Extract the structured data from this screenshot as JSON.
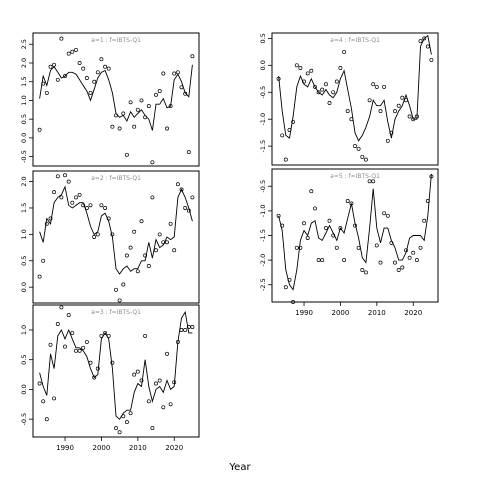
{
  "chart_data": {
    "type": "scatter",
    "xlabel": "Year",
    "panels": [
      {
        "title": "a=1 : f=IBTS-Q1",
        "ylim": [
          -0.75,
          2.8
        ],
        "yticks": [
          -0.5,
          0.0,
          0.5,
          1.0,
          1.5,
          2.0,
          2.5
        ],
        "show_xticks": false,
        "points": {
          "x": [
            1983,
            1984,
            1985,
            1986,
            1987,
            1988,
            1989,
            1990,
            1991,
            1992,
            1993,
            1994,
            1995,
            1996,
            1997,
            1998,
            1999,
            2000,
            2001,
            2002,
            2003,
            2004,
            2005,
            2006,
            2007,
            2008,
            2009,
            2010,
            2011,
            2012,
            2013,
            2014,
            2015,
            2016,
            2017,
            2018,
            2019,
            2020,
            2021,
            2022,
            2023,
            2024,
            2025
          ],
          "y": [
            0.22,
            1.45,
            1.2,
            1.9,
            1.95,
            1.55,
            2.65,
            1.65,
            2.25,
            2.3,
            2.35,
            2.0,
            1.85,
            1.6,
            1.2,
            1.5,
            1.75,
            2.1,
            1.9,
            1.85,
            0.3,
            0.6,
            0.25,
            0.65,
            -0.45,
            0.95,
            0.3,
            0.75,
            1.0,
            0.55,
            0.85,
            -0.65,
            1.15,
            1.25,
            1.72,
            0.25,
            0.85,
            1.72,
            1.75,
            1.35,
            1.18,
            -0.38,
            2.18
          ]
        },
        "fit": {
          "x": [
            1983,
            1984,
            1985,
            1986,
            1987,
            1988,
            1989,
            1990,
            1991,
            1992,
            1993,
            1994,
            1995,
            1996,
            1997,
            1998,
            1999,
            2000,
            2001,
            2002,
            2003,
            2004,
            2005,
            2006,
            2007,
            2008,
            2009,
            2010,
            2011,
            2012,
            2013,
            2014,
            2015,
            2016,
            2017,
            2018,
            2019,
            2020,
            2021,
            2022,
            2023,
            2024,
            2025
          ],
          "y": [
            1.05,
            1.65,
            1.4,
            1.8,
            1.9,
            1.75,
            1.6,
            1.65,
            1.75,
            1.75,
            1.7,
            1.55,
            1.4,
            1.25,
            1.0,
            1.3,
            1.6,
            1.75,
            1.8,
            1.55,
            1.2,
            0.65,
            0.55,
            0.6,
            0.45,
            0.7,
            0.55,
            0.65,
            0.75,
            0.6,
            0.5,
            0.2,
            0.9,
            0.9,
            1.05,
            0.8,
            0.85,
            1.55,
            1.7,
            1.5,
            1.2,
            1.1,
            1.95
          ]
        }
      },
      {
        "title": "a=2 : f=IBTS-Q1",
        "ylim": [
          -0.3,
          2.2
        ],
        "yticks": [
          0.0,
          0.5,
          1.0,
          1.5,
          2.0
        ],
        "show_xticks": false,
        "points": {
          "x": [
            1983,
            1984,
            1985,
            1986,
            1987,
            1988,
            1989,
            1990,
            1991,
            1992,
            1993,
            1994,
            1995,
            1996,
            1997,
            1998,
            1999,
            2000,
            2001,
            2002,
            2003,
            2004,
            2005,
            2006,
            2007,
            2008,
            2009,
            2010,
            2011,
            2012,
            2013,
            2014,
            2015,
            2016,
            2017,
            2018,
            2019,
            2020,
            2021,
            2022,
            2023,
            2024,
            2025
          ],
          "y": [
            0.2,
            0.5,
            1.2,
            1.3,
            1.8,
            2.1,
            1.7,
            2.12,
            2.0,
            1.6,
            1.7,
            1.75,
            1.55,
            1.5,
            1.55,
            0.95,
            1.0,
            1.55,
            1.5,
            1.3,
            1.0,
            -0.05,
            -0.25,
            0.05,
            0.6,
            0.75,
            1.05,
            0.3,
            1.25,
            0.6,
            0.4,
            1.7,
            0.7,
            1.0,
            0.85,
            0.85,
            1.2,
            0.7,
            1.95,
            1.85,
            1.5,
            1.45,
            1.7
          ]
        },
        "fit": {
          "x": [
            1983,
            1984,
            1985,
            1986,
            1987,
            1988,
            1989,
            1990,
            1991,
            1992,
            1993,
            1994,
            1995,
            1996,
            1997,
            1998,
            1999,
            2000,
            2001,
            2002,
            2003,
            2004,
            2005,
            2006,
            2007,
            2008,
            2009,
            2010,
            2011,
            2012,
            2013,
            2014,
            2015,
            2016,
            2017,
            2018,
            2019,
            2020,
            2021,
            2022,
            2023,
            2024,
            2025
          ],
          "y": [
            1.05,
            0.85,
            1.3,
            1.2,
            1.6,
            1.7,
            1.75,
            1.9,
            1.55,
            1.5,
            1.55,
            1.6,
            1.6,
            1.4,
            1.15,
            1.0,
            1.05,
            1.35,
            1.4,
            1.25,
            0.95,
            0.35,
            0.25,
            0.35,
            0.4,
            0.3,
            0.35,
            0.35,
            0.5,
            0.5,
            0.85,
            0.55,
            0.9,
            0.75,
            0.8,
            0.95,
            0.9,
            0.95,
            1.7,
            1.85,
            1.7,
            1.5,
            1.25
          ]
        }
      },
      {
        "title": "a=3 : f=IBTS-Q1",
        "ylim": [
          -0.8,
          1.42
        ],
        "yticks": [
          -0.5,
          0.0,
          0.5,
          1.0
        ],
        "show_xticks": true,
        "xticks": [
          1990,
          2000,
          2010,
          2020
        ],
        "points": {
          "x": [
            1983,
            1984,
            1985,
            1986,
            1987,
            1988,
            1989,
            1990,
            1991,
            1992,
            1993,
            1994,
            1995,
            1996,
            1997,
            1998,
            1999,
            2000,
            2001,
            2002,
            2003,
            2004,
            2005,
            2006,
            2007,
            2008,
            2009,
            2010,
            2011,
            2012,
            2013,
            2014,
            2015,
            2016,
            2017,
            2018,
            2019,
            2020,
            2021,
            2022,
            2023,
            2024,
            2025
          ],
          "y": [
            0.1,
            -0.2,
            -0.5,
            0.75,
            -0.15,
            1.1,
            1.38,
            0.72,
            1.25,
            0.95,
            0.65,
            0.65,
            0.7,
            0.8,
            0.45,
            0.2,
            0.35,
            0.9,
            0.95,
            0.9,
            0.45,
            -0.65,
            -0.72,
            -0.45,
            -0.55,
            -0.4,
            0.25,
            0.3,
            0.15,
            0.9,
            -0.2,
            -0.65,
            0.1,
            0.15,
            -0.3,
            0.6,
            -0.25,
            0.12,
            0.8,
            1.0,
            1.0,
            1.05,
            1.05
          ]
        },
        "fit": {
          "x": [
            1983,
            1984,
            1985,
            1986,
            1987,
            1988,
            1989,
            1990,
            1991,
            1992,
            1993,
            1994,
            1995,
            1996,
            1997,
            1998,
            1999,
            2000,
            2001,
            2002,
            2003,
            2004,
            2005,
            2006,
            2007,
            2008,
            2009,
            2010,
            2011,
            2012,
            2013,
            2014,
            2015,
            2016,
            2017,
            2018,
            2019,
            2020,
            2021,
            2022,
            2023,
            2024,
            2025
          ],
          "y": [
            0.28,
            0.05,
            -0.1,
            0.6,
            0.35,
            0.9,
            1.0,
            0.85,
            1.0,
            0.85,
            0.7,
            0.7,
            0.65,
            0.55,
            0.35,
            0.2,
            0.25,
            0.85,
            0.95,
            0.85,
            0.35,
            -0.45,
            -0.5,
            -0.4,
            -0.35,
            -0.35,
            -0.05,
            0.1,
            0.05,
            0.5,
            0.05,
            -0.2,
            0.0,
            0.05,
            -0.05,
            0.15,
            0.0,
            0.05,
            0.8,
            1.2,
            1.3,
            0.95,
            0.95
          ]
        }
      },
      {
        "title": "a=4 : f=IBTS-Q1",
        "ylim": [
          -1.85,
          0.6
        ],
        "yticks": [
          -1.5,
          -1.0,
          -0.5,
          0.0,
          0.5
        ],
        "show_xticks": false,
        "points": {
          "x": [
            1983,
            1984,
            1985,
            1986,
            1987,
            1988,
            1989,
            1990,
            1991,
            1992,
            1993,
            1994,
            1995,
            1996,
            1997,
            1998,
            1999,
            2000,
            2001,
            2002,
            2003,
            2004,
            2005,
            2006,
            2007,
            2008,
            2009,
            2010,
            2011,
            2012,
            2013,
            2014,
            2015,
            2016,
            2017,
            2018,
            2019,
            2020,
            2021,
            2022,
            2023,
            2024,
            2025
          ],
          "y": [
            -0.25,
            -1.3,
            -1.75,
            -1.2,
            -1.05,
            0.0,
            -0.05,
            -0.3,
            -0.15,
            -0.1,
            -0.4,
            -0.5,
            -0.45,
            -0.35,
            -0.7,
            -0.5,
            -0.3,
            -0.05,
            0.25,
            -0.85,
            -1.0,
            -1.5,
            -1.55,
            -1.7,
            -1.75,
            -0.65,
            -0.35,
            -0.4,
            -0.85,
            -0.4,
            -1.4,
            -1.25,
            -0.85,
            -0.75,
            -0.6,
            -0.65,
            -0.95,
            -1.0,
            -0.95,
            0.45,
            0.5,
            0.35,
            0.1
          ]
        },
        "fit": {
          "x": [
            1983,
            1984,
            1985,
            1986,
            1987,
            1988,
            1989,
            1990,
            1991,
            1992,
            1993,
            1994,
            1995,
            1996,
            1997,
            1998,
            1999,
            2000,
            2001,
            2002,
            2003,
            2004,
            2005,
            2006,
            2007,
            2008,
            2009,
            2010,
            2011,
            2012,
            2013,
            2014,
            2015,
            2016,
            2017,
            2018,
            2019,
            2020,
            2021,
            2022,
            2023,
            2024,
            2025
          ],
          "y": [
            -0.2,
            -0.85,
            -1.3,
            -1.35,
            -0.95,
            -0.4,
            -0.2,
            -0.35,
            -0.4,
            -0.25,
            -0.4,
            -0.5,
            -0.55,
            -0.45,
            -0.55,
            -0.6,
            -0.5,
            -0.25,
            -0.1,
            -0.45,
            -0.8,
            -1.25,
            -1.4,
            -1.3,
            -1.15,
            -0.95,
            -0.65,
            -0.75,
            -0.75,
            -0.65,
            -1.05,
            -1.35,
            -1.0,
            -0.85,
            -0.75,
            -0.55,
            -0.75,
            -1.0,
            -1.0,
            0.35,
            0.5,
            0.55,
            0.2
          ]
        }
      },
      {
        "title": "a=5 : f=IBTS-Q1",
        "ylim": [
          -2.85,
          -0.15
        ],
        "yticks": [
          -2.5,
          -2.0,
          -1.5,
          -1.0,
          -0.5
        ],
        "show_xticks": true,
        "xticks": [
          1990,
          2000,
          2010,
          2020
        ],
        "points": {
          "x": [
            1983,
            1984,
            1985,
            1986,
            1987,
            1988,
            1989,
            1990,
            1991,
            1992,
            1993,
            1994,
            1995,
            1996,
            1997,
            1998,
            1999,
            2000,
            2001,
            2002,
            2003,
            2004,
            2005,
            2006,
            2007,
            2008,
            2009,
            2010,
            2011,
            2012,
            2013,
            2014,
            2015,
            2016,
            2017,
            2018,
            2019,
            2020,
            2021,
            2022,
            2023,
            2024,
            2025
          ],
          "y": [
            -1.1,
            -1.3,
            -2.55,
            -2.4,
            -2.85,
            -1.75,
            -1.75,
            -1.25,
            -1.55,
            -0.6,
            -0.95,
            -2.0,
            -2.0,
            -1.35,
            -1.2,
            -1.5,
            -1.75,
            -1.35,
            -2.0,
            -0.8,
            -0.85,
            -1.3,
            -1.75,
            -2.2,
            -2.25,
            -0.4,
            -0.4,
            -1.7,
            -2.05,
            -1.05,
            -1.1,
            -1.65,
            -2.05,
            -2.2,
            -2.15,
            -1.8,
            -1.95,
            -1.85,
            -2.0,
            -1.75,
            -1.2,
            -0.8,
            -0.3
          ]
        },
        "fit": {
          "x": [
            1983,
            1984,
            1985,
            1986,
            1987,
            1988,
            1989,
            1990,
            1991,
            1992,
            1993,
            1994,
            1995,
            1996,
            1997,
            1998,
            1999,
            2000,
            2001,
            2002,
            2003,
            2004,
            2005,
            2006,
            2007,
            2008,
            2009,
            2010,
            2011,
            2012,
            2013,
            2014,
            2015,
            2016,
            2017,
            2018,
            2019,
            2020,
            2021,
            2022,
            2023,
            2024,
            2025
          ],
          "y": [
            -1.1,
            -1.4,
            -2.2,
            -2.5,
            -2.6,
            -2.2,
            -1.6,
            -1.4,
            -1.5,
            -1.25,
            -1.2,
            -1.55,
            -1.6,
            -1.45,
            -1.3,
            -1.45,
            -1.6,
            -1.35,
            -1.45,
            -1.15,
            -0.85,
            -1.25,
            -1.55,
            -1.95,
            -2.05,
            -1.35,
            -0.55,
            -1.35,
            -1.65,
            -1.35,
            -1.35,
            -1.6,
            -1.75,
            -2.0,
            -2.0,
            -1.85,
            -1.55,
            -1.5,
            -1.5,
            -1.5,
            -1.6,
            -1.1,
            -0.25
          ]
        }
      }
    ]
  }
}
